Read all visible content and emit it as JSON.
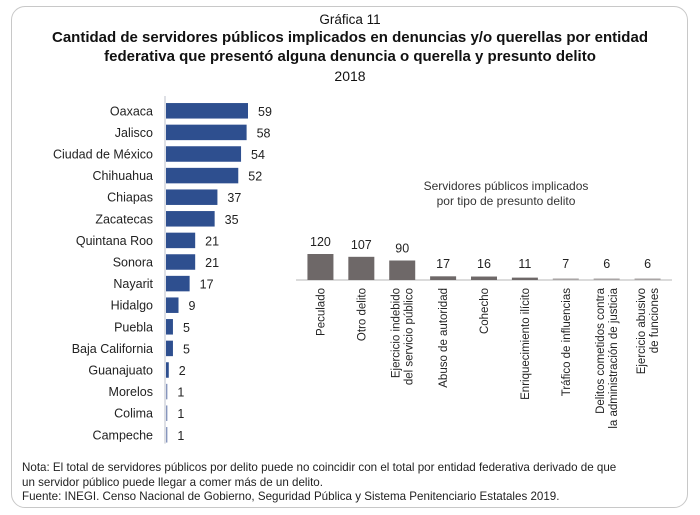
{
  "header": {
    "kicker": "Gráfica 11",
    "title_line1": "Cantidad de servidores públicos implicados en denuncias y/o querellas por entidad",
    "title_line2": "federativa que presentó alguna denuncia o querella y presunto delito",
    "year": "2018"
  },
  "chart_data": [
    {
      "type": "bar",
      "orientation": "horizontal",
      "title": "",
      "categories": [
        "Oaxaca",
        "Jalisco",
        "Ciudad de México",
        "Chihuahua",
        "Chiapas",
        "Zacatecas",
        "Quintana Roo",
        "Sonora",
        "Nayarit",
        "Hidalgo",
        "Puebla",
        "Baja California",
        "Guanajuato",
        "Morelos",
        "Colima",
        "Campeche"
      ],
      "values": [
        59,
        58,
        54,
        52,
        37,
        35,
        21,
        21,
        17,
        9,
        5,
        5,
        2,
        1,
        1,
        1
      ],
      "data_labels": [
        "59",
        "58",
        "54",
        "52",
        "37",
        "35",
        "21",
        "21",
        "17",
        "9",
        "5",
        "5",
        "2",
        "1",
        "1",
        "1"
      ],
      "xlim": [
        0,
        59
      ],
      "grid": false,
      "color": "#2e4f8f"
    },
    {
      "type": "bar",
      "orientation": "vertical",
      "title": "Servidores públicos implicados por tipo de presunto delito",
      "title_lines": [
        "Servidores públicos implicados",
        "por tipo de presunto delito"
      ],
      "categories": [
        [
          "Peculado"
        ],
        [
          "Otro delito"
        ],
        [
          "Ejercicio indebido",
          "del servicio público"
        ],
        [
          "Abuso de autoridad"
        ],
        [
          "Cohecho"
        ],
        [
          "Enriquecimiento ilícito"
        ],
        [
          "Tráfico de influencias"
        ],
        [
          "Delitos cometidos contra",
          "la administración de justicia"
        ],
        [
          "Ejercicio abusivo",
          "de funciones"
        ]
      ],
      "values": [
        120,
        107,
        90,
        17,
        16,
        11,
        7,
        6,
        6
      ],
      "data_labels": [
        "120",
        "107",
        "90",
        "17",
        "16",
        "11",
        "7",
        "6",
        "6"
      ],
      "ylim": [
        0,
        120
      ],
      "grid": false,
      "color": "#6e6868"
    }
  ],
  "footer": {
    "note_line1": "Nota: El total de servidores públicos por delito puede no coincidir con el total por entidad federativa derivado de que",
    "note_line2": "un servidor público puede llegar a comer más de un delito.",
    "source": "Fuente: INEGI. Censo Nacional de Gobierno, Seguridad Pública y Sistema Penitenciario Estatales 2019."
  }
}
